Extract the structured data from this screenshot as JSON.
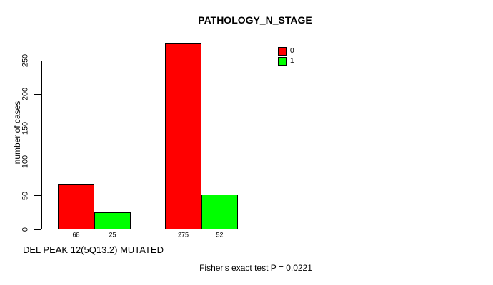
{
  "chart_data": {
    "type": "bar",
    "title": "PATHOLOGY_N_STAGE",
    "xlabel": "DEL PEAK 12(5Q13.2) MUTATED",
    "ylabel": "number of cases",
    "series": [
      {
        "name": "0",
        "color": "#FF0000"
      },
      {
        "name": "1",
        "color": "#00FF00"
      }
    ],
    "groups": [
      {
        "bars": [
          {
            "series": "0",
            "value": 68,
            "label": "68"
          },
          {
            "series": "1",
            "value": 25,
            "label": "25"
          }
        ]
      },
      {
        "bars": [
          {
            "series": "0",
            "value": 275,
            "label": "275"
          },
          {
            "series": "1",
            "value": 52,
            "label": "52"
          }
        ]
      }
    ],
    "y_ticks": [
      0,
      50,
      100,
      150,
      200,
      250
    ],
    "ylim": [
      0,
      275
    ],
    "grid": false,
    "legend_position": "top-right",
    "bar_border_color": "#000000",
    "background_color": "#FFFFFF"
  },
  "footer": {
    "text": "Fisher's exact test P = 0.0221"
  }
}
